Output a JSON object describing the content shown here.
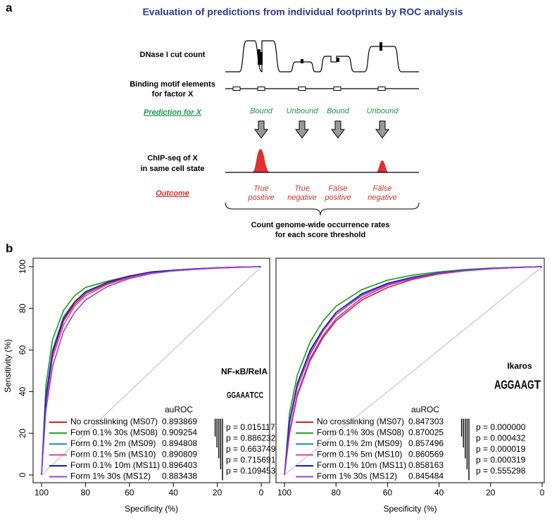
{
  "figure_labels": [
    "a",
    "b"
  ],
  "diagram": {
    "title": "Evaluation of predictions from individual footprints by ROC analysis",
    "dnase_label": "DNase I cut count",
    "motif_label": [
      "Binding motif elements",
      "for factor X"
    ],
    "prediction_label": "Prediction for X",
    "predictions": [
      "Bound",
      "Unbound",
      "Bound",
      "Unbound"
    ],
    "chip_label": [
      "ChIP-seq of X",
      "in same cell state"
    ],
    "outcome_label": "Outcome",
    "outcomes": [
      [
        "True",
        "positive"
      ],
      [
        "True",
        "negative"
      ],
      [
        "False",
        "positive"
      ],
      [
        "False",
        "negative"
      ]
    ],
    "footer": [
      "Count genome-wide occurrence rates",
      "for each score threshold"
    ]
  },
  "logo_colors": {
    "A": "#3cb043",
    "C": "#2b4fc9",
    "G": "#f0a030",
    "T": "#e03020"
  },
  "chart_data": [
    {
      "type": "line",
      "xlabel": "Specificity (%)",
      "ylabel": "Sensitivity (%)",
      "xlim": [
        100,
        0
      ],
      "ylim": [
        0,
        100
      ],
      "xticks": [
        100,
        80,
        60,
        40,
        20,
        0
      ],
      "yticks": [
        0,
        20,
        40,
        60,
        80,
        100
      ],
      "legend_title": "auROC",
      "logo_title": "NF-κB/RelA",
      "logo": [
        "G",
        "G",
        "A",
        "A",
        "A",
        "T",
        "C",
        "C"
      ],
      "x": [
        100,
        98,
        95,
        90,
        85,
        80,
        70,
        60,
        50,
        40,
        30,
        20,
        10,
        0
      ],
      "series": [
        {
          "name": "No crosslinking (MS07)",
          "color": "#e41a1c",
          "auroc": "0.893869",
          "values": [
            0,
            36,
            58,
            74,
            82,
            87,
            92,
            95,
            97,
            98,
            98.7,
            99.3,
            99.7,
            100
          ]
        },
        {
          "name": "Form 0.1% 30s (MS08)",
          "color": "#1a9a1a",
          "auroc": "0.909254",
          "values": [
            0,
            43,
            65,
            79,
            86,
            90,
            93,
            95.5,
            97.3,
            98.3,
            99,
            99.5,
            99.8,
            100
          ]
        },
        {
          "name": "Form 0.1% 2m (MS09)",
          "color": "#1a9a9a",
          "auroc": "0.894808",
          "values": [
            0,
            38,
            60,
            76,
            83,
            87.5,
            92.5,
            95.5,
            97.5,
            98.3,
            99,
            99.5,
            99.8,
            100
          ]
        },
        {
          "name": "Form 0.1% 5m (MS10)",
          "color": "#e040a0",
          "auroc": "0.890809",
          "values": [
            0,
            34,
            56,
            72,
            81,
            86,
            91.5,
            94.8,
            97,
            98,
            98.8,
            99.4,
            99.8,
            100
          ]
        },
        {
          "name": "Form 0.1% 10m (MS11)",
          "color": "#1a1ab0",
          "auroc": "0.896403",
          "values": [
            0,
            37,
            59,
            75,
            83,
            88,
            92.5,
            95.5,
            97.5,
            98.3,
            99,
            99.5,
            99.8,
            100
          ]
        },
        {
          "name": "Form 1% 30s (MS12)",
          "color": "#9a40e0",
          "auroc": "0.883438",
          "values": [
            0,
            31,
            52,
            69,
            78,
            84,
            90.5,
            94.3,
            96.7,
            98,
            98.8,
            99.4,
            99.8,
            100
          ]
        }
      ],
      "pvalues": [
        "p = 0.015117",
        "p = 0.886232",
        "p = 0.663749",
        "p = 0.715691",
        "p = 0.109453"
      ]
    },
    {
      "type": "line",
      "xlabel": "Specificity (%)",
      "xlim": [
        100,
        0
      ],
      "ylim": [
        0,
        100
      ],
      "xticks": [
        100,
        80,
        60,
        40,
        20,
        0
      ],
      "legend_title": "auROC",
      "logo_title": "Ikaros",
      "logo": [
        "A",
        "G",
        "G",
        "A",
        "A",
        "G",
        "T"
      ],
      "x": [
        100,
        98,
        95,
        90,
        85,
        80,
        70,
        60,
        50,
        40,
        30,
        20,
        10,
        0
      ],
      "series": [
        {
          "name": "No crosslinking (MS07)",
          "color": "#e41a1c",
          "auroc": "0.847303",
          "values": [
            0,
            20,
            38,
            55,
            66,
            74,
            84,
            90,
            94,
            96.5,
            98,
            99,
            99.6,
            100
          ]
        },
        {
          "name": "Form 0.1% 30s (MS08)",
          "color": "#1a9a1a",
          "auroc": "0.870025",
          "values": [
            0,
            30,
            48,
            64,
            74,
            81,
            89,
            93.5,
            96,
            97.5,
            98.6,
            99.3,
            99.7,
            100
          ]
        },
        {
          "name": "Form 0.1% 2m (MS09)",
          "color": "#1a9a9a",
          "auroc": "0.857496",
          "values": [
            0,
            25,
            43,
            59,
            70,
            77,
            86.5,
            92,
            95,
            97,
            98.3,
            99.1,
            99.7,
            100
          ]
        },
        {
          "name": "Form 0.1% 5m (MS10)",
          "color": "#e040a0",
          "auroc": "0.860569",
          "values": [
            0,
            25,
            42,
            58,
            69,
            77,
            86,
            91.5,
            95,
            97,
            98.2,
            99,
            99.6,
            100
          ]
        },
        {
          "name": "Form 0.1% 10m (MS11)",
          "color": "#1a1ab0",
          "auroc": "0.858163",
          "values": [
            0,
            26,
            44,
            60,
            70,
            78,
            87,
            92,
            95,
            97,
            98.3,
            99.1,
            99.7,
            100
          ]
        },
        {
          "name": "Form 1% 30s (MS12)",
          "color": "#9a40e0",
          "auroc": "0.845484",
          "values": [
            0,
            21,
            39,
            56,
            67,
            75,
            85,
            91,
            94.5,
            96.8,
            98.1,
            99,
            99.6,
            100
          ]
        }
      ],
      "pvalues": [
        "p = 0.000000",
        "p = 0.000432",
        "p = 0.000019",
        "p = 0.000319",
        "p = 0.555298"
      ]
    }
  ]
}
